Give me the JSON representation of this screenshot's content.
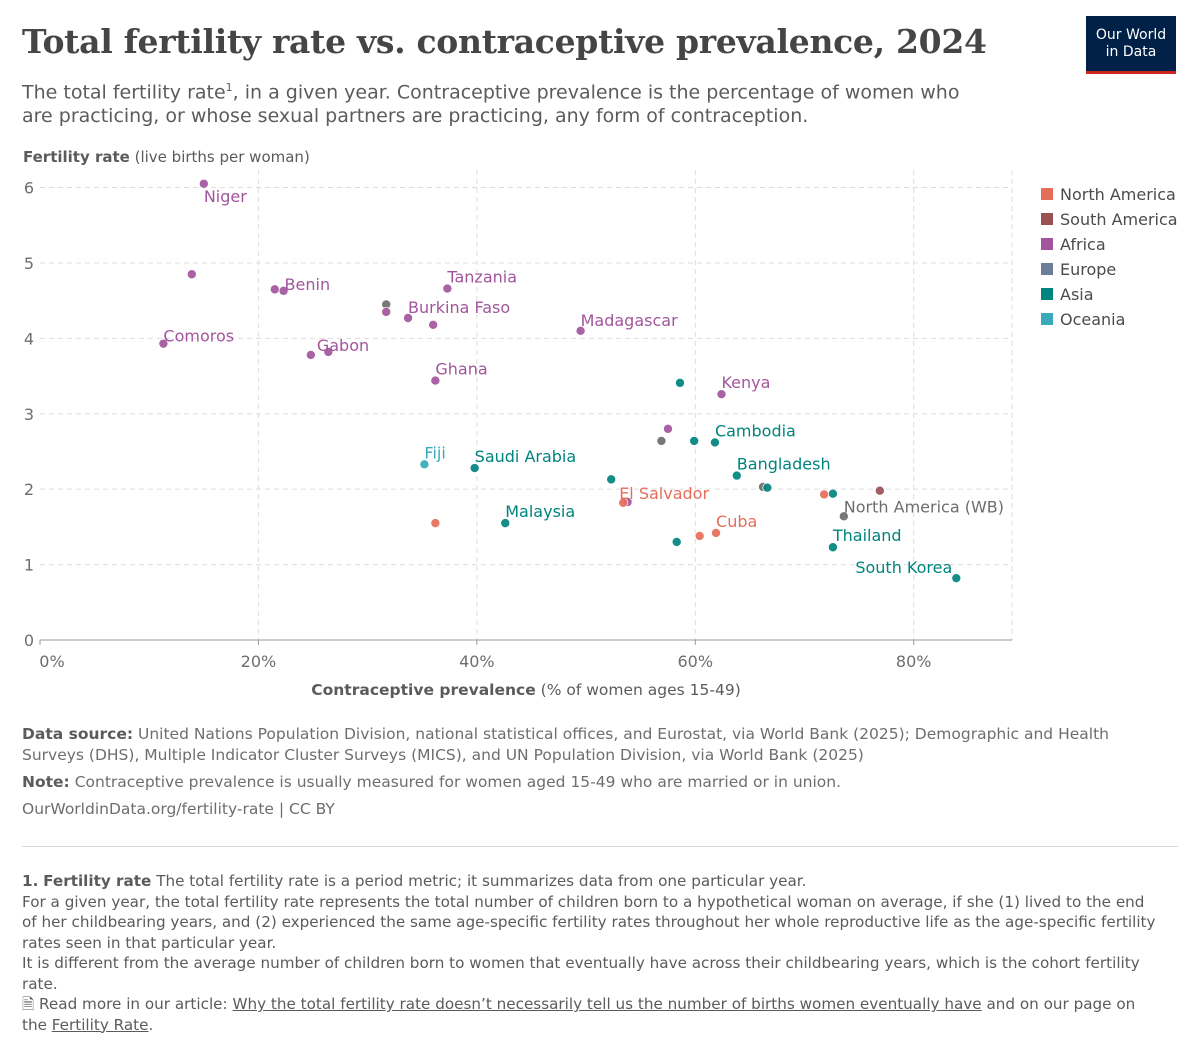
{
  "header": {
    "title": "Total fertility rate vs. contraceptive prevalence, 2024",
    "subtitle_before": "The total fertility rate",
    "subtitle_sup": "1",
    "subtitle_after": ", in a given year. Contraceptive prevalence is the percentage of women who are practicing, or whose sexual partners are practicing, any form of contraception.",
    "logo_line1": "Our World",
    "logo_line2": "in Data"
  },
  "footer": {
    "source_label": "Data source:",
    "source_text": "United Nations Population Division, national statistical offices, and Eurostat, via World Bank (2025); Demographic and Health Surveys (DHS), Multiple Indicator Cluster Surveys (MICS), and UN Population Division, via World Bank (2025)",
    "note_label": "Note:",
    "note_text": "Contraceptive prevalence is usually measured for women aged 15-49 who are married or in union.",
    "url": "OurWorldinData.org/fertility-rate | CC BY"
  },
  "footnote": {
    "number": "1.",
    "term": "Fertility rate",
    "line1": "The total fertility rate is a period metric; it summarizes data from one particular year.",
    "line2": "For a given year, the total fertility rate represents the total number of children born to a hypothetical woman on average, if she (1) lived to the end of her childbearing years, and (2) experienced the same age-specific fertility rates throughout her whole reproductive life as the age-specific fertility rates seen in that particular year.",
    "line3": "It is different from the average number of children born to women that eventually have across their childbearing years, which is the cohort fertility rate.",
    "read_more_prefix": "Read more in our article:",
    "article_link": "Why the total fertility rate doesn’t necessarily tell us the number of births women eventually have",
    "read_more_middle": "and on our page on the",
    "page_link": "Fertility Rate",
    "read_more_suffix": "."
  },
  "chart_data": {
    "type": "scatter",
    "title": "Total fertility rate vs. contraceptive prevalence, 2024",
    "ylabel_bold": "Fertility rate",
    "ylabel_rest": " (live births per woman)",
    "xlabel_bold": "Contraceptive prevalence",
    "xlabel_rest": " (% of women ages 15-49)",
    "xlim": [
      0,
      89
    ],
    "ylim": [
      0,
      6.1
    ],
    "x_ticks": [
      0,
      20,
      40,
      60,
      80
    ],
    "x_tick_labels": [
      "0%",
      "20%",
      "40%",
      "60%",
      "80%"
    ],
    "y_ticks": [
      0,
      1,
      2,
      3,
      4,
      5,
      6
    ],
    "y_tick_labels": [
      "0",
      "1",
      "2",
      "3",
      "4",
      "5",
      "6"
    ],
    "grid": true,
    "legend_position": "right",
    "colors": {
      "North America": "#e56e5a",
      "South America": "#9a5153",
      "Africa": "#a2559c",
      "Europe": "#6b7d99",
      "Asia": "#00847e",
      "Oceania": "#38aaba",
      "World Bank": "#6d6d6d"
    },
    "legend": [
      "North America",
      "South America",
      "Africa",
      "Europe",
      "Asia",
      "Oceania"
    ],
    "points": [
      {
        "x": 15.0,
        "y": 6.05,
        "region": "Africa",
        "label": "Niger"
      },
      {
        "x": 13.9,
        "y": 4.85,
        "region": "Africa",
        "label": ""
      },
      {
        "x": 11.3,
        "y": 3.93,
        "region": "Africa",
        "label": "Comoros"
      },
      {
        "x": 21.5,
        "y": 4.65,
        "region": "Africa",
        "label": ""
      },
      {
        "x": 22.3,
        "y": 4.63,
        "region": "Africa",
        "label": "Benin"
      },
      {
        "x": 24.8,
        "y": 3.78,
        "region": "Africa",
        "label": "Gabon"
      },
      {
        "x": 26.4,
        "y": 3.82,
        "region": "Africa",
        "label": ""
      },
      {
        "x": 31.7,
        "y": 4.45,
        "region": "World Bank",
        "label": ""
      },
      {
        "x": 31.7,
        "y": 4.35,
        "region": "Africa",
        "label": ""
      },
      {
        "x": 33.7,
        "y": 4.27,
        "region": "Africa",
        "label": "Burkina Faso"
      },
      {
        "x": 36.0,
        "y": 4.18,
        "region": "Africa",
        "label": ""
      },
      {
        "x": 37.3,
        "y": 4.66,
        "region": "Africa",
        "label": "Tanzania"
      },
      {
        "x": 36.2,
        "y": 3.44,
        "region": "Africa",
        "label": "Ghana"
      },
      {
        "x": 49.5,
        "y": 4.1,
        "region": "Africa",
        "label": "Madagascar"
      },
      {
        "x": 62.4,
        "y": 3.26,
        "region": "Africa",
        "label": "Kenya"
      },
      {
        "x": 57.5,
        "y": 2.8,
        "region": "Africa",
        "label": ""
      },
      {
        "x": 53.8,
        "y": 1.83,
        "region": "Africa",
        "label": ""
      },
      {
        "x": 58.6,
        "y": 3.41,
        "region": "Asia",
        "label": ""
      },
      {
        "x": 61.8,
        "y": 2.62,
        "region": "Asia",
        "label": "Cambodia"
      },
      {
        "x": 59.9,
        "y": 2.64,
        "region": "Asia",
        "label": ""
      },
      {
        "x": 56.9,
        "y": 2.64,
        "region": "World Bank",
        "label": ""
      },
      {
        "x": 63.8,
        "y": 2.18,
        "region": "Asia",
        "label": "Bangladesh"
      },
      {
        "x": 66.2,
        "y": 2.03,
        "region": "World Bank",
        "label": ""
      },
      {
        "x": 66.6,
        "y": 2.02,
        "region": "Asia",
        "label": ""
      },
      {
        "x": 72.6,
        "y": 1.94,
        "region": "Asia",
        "label": ""
      },
      {
        "x": 52.3,
        "y": 2.13,
        "region": "Asia",
        "label": ""
      },
      {
        "x": 39.8,
        "y": 2.28,
        "region": "Asia",
        "label": "Saudi Arabia"
      },
      {
        "x": 42.6,
        "y": 1.55,
        "region": "Asia",
        "label": "Malaysia"
      },
      {
        "x": 58.3,
        "y": 1.3,
        "region": "Asia",
        "label": ""
      },
      {
        "x": 72.6,
        "y": 1.23,
        "region": "Asia",
        "label": "Thailand"
      },
      {
        "x": 83.9,
        "y": 0.82,
        "region": "Asia",
        "label": "South Korea"
      },
      {
        "x": 35.2,
        "y": 2.33,
        "region": "Oceania",
        "label": "Fiji"
      },
      {
        "x": 36.2,
        "y": 1.55,
        "region": "North America",
        "label": ""
      },
      {
        "x": 53.4,
        "y": 1.82,
        "region": "North America",
        "label": "El Salvador"
      },
      {
        "x": 60.4,
        "y": 1.38,
        "region": "North America",
        "label": ""
      },
      {
        "x": 61.9,
        "y": 1.42,
        "region": "North America",
        "label": "Cuba"
      },
      {
        "x": 71.8,
        "y": 1.93,
        "region": "North America",
        "label": ""
      },
      {
        "x": 76.9,
        "y": 1.98,
        "region": "South America",
        "label": ""
      },
      {
        "x": 73.6,
        "y": 1.64,
        "region": "World Bank",
        "label": "North America (WB)"
      }
    ]
  }
}
